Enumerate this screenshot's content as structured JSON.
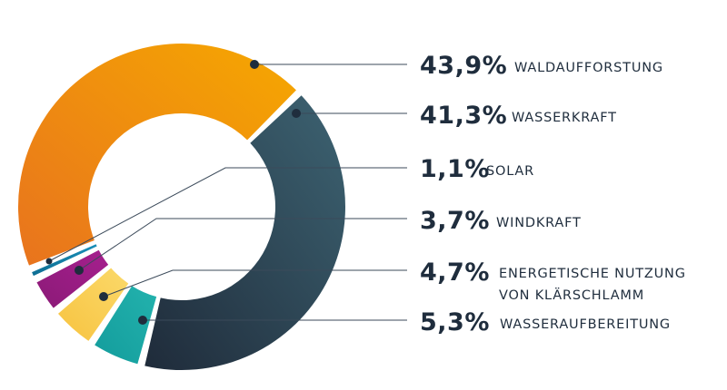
{
  "chart_data": {
    "type": "pie",
    "donut": true,
    "title": "",
    "slices": [
      {
        "name": "WALDAUFFORSTUNG",
        "value": 43.9,
        "value_label": "43,9%",
        "color_a": "#e8731e",
        "color_b": "#f6a800"
      },
      {
        "name": "WASSERKRAFT",
        "value": 41.3,
        "value_label": "41,3%",
        "color_a": "#1f2b3a",
        "color_b": "#3d6372"
      },
      {
        "name": "SOLAR",
        "value": 1.1,
        "value_label": "1,1%",
        "color_a": "#0e6e93",
        "color_b": "#1a8fb8"
      },
      {
        "name": "WINDKRAFT",
        "value": 3.7,
        "value_label": "3,7%",
        "color_a": "#8b1a77",
        "color_b": "#a61f8e"
      },
      {
        "name": "ENERGETISCHE NUTZUNG VON KLÄRSCHLAMM",
        "label_lines": [
          "ENERGETISCHE NUTZUNG",
          "VON KLÄRSCHLAMM"
        ],
        "value": 4.7,
        "value_label": "4,7%",
        "color_a": "#f7c340",
        "color_b": "#fbd96a"
      },
      {
        "name": "WASSERAUFBEREITUNG",
        "value": 5.3,
        "value_label": "5,3%",
        "color_a": "#139c9c",
        "color_b": "#23b2ad"
      }
    ]
  }
}
